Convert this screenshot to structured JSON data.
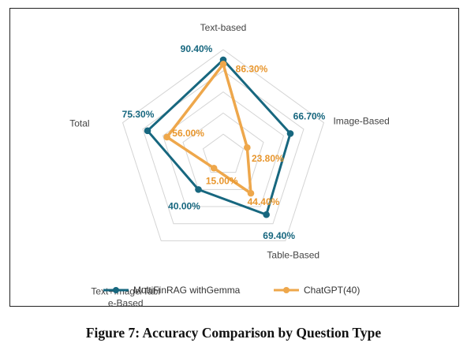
{
  "chart_data": {
    "type": "radar",
    "axes": [
      "Text-based",
      "Image-Based",
      "Table-Based",
      "Text+Image/Table-Based",
      "Total"
    ],
    "axis_labels": [
      "Text-based",
      "Image-Based",
      "Table-Based",
      "Text+Image/Tabl|e-Based",
      "Total"
    ],
    "series": [
      {
        "name": "MultiFinRAG withGemma",
        "values": [
          90.4,
          66.7,
          69.4,
          40.0,
          75.3
        ],
        "labels": [
          "90.40%",
          "66.70%",
          "69.40%",
          "40.00%",
          "75.30%"
        ],
        "color": "#17677f"
      },
      {
        "name": "ChatGPT(40)",
        "values": [
          86.3,
          23.8,
          44.4,
          15.0,
          56.0
        ],
        "labels": [
          "86.30%",
          "23.80%",
          "44.40%",
          "15.00%",
          "56.00%"
        ],
        "color": "#eea74b"
      }
    ],
    "range": [
      0,
      100
    ],
    "grid": true,
    "legend_position": "bottom"
  },
  "caption": "Figure 7: Accuracy Comparison by Question Type"
}
